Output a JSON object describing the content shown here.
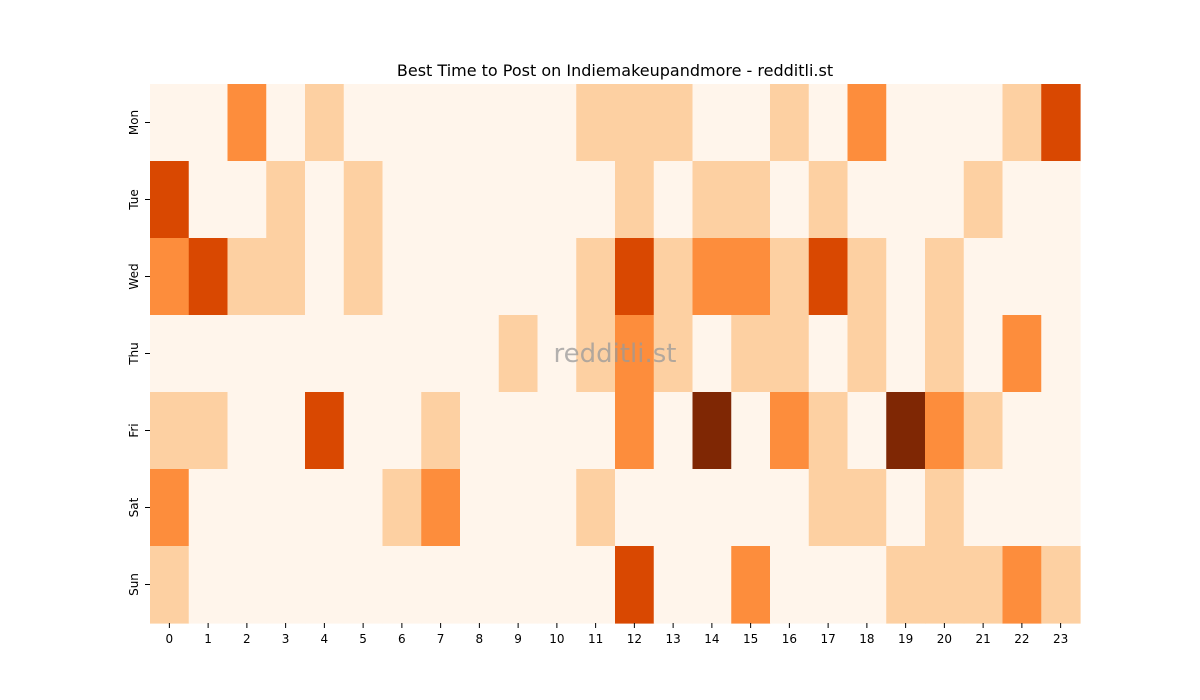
{
  "chart_data": {
    "type": "heatmap",
    "title": "Best Time to Post on Indiemakeupandmore - redditli.st",
    "watermark": "redditli.st",
    "xlabel": "",
    "ylabel": "",
    "x": [
      "0",
      "1",
      "2",
      "3",
      "4",
      "5",
      "6",
      "7",
      "8",
      "9",
      "10",
      "11",
      "12",
      "13",
      "14",
      "15",
      "16",
      "17",
      "18",
      "19",
      "20",
      "21",
      "22",
      "23"
    ],
    "y": [
      "Mon",
      "Tue",
      "Wed",
      "Thu",
      "Fri",
      "Sat",
      "Sun"
    ],
    "values": [
      [
        0,
        0,
        2,
        0,
        1,
        0,
        0,
        0,
        0,
        0,
        0,
        1,
        1,
        1,
        0,
        0,
        1,
        0,
        2,
        0,
        0,
        0,
        1,
        3
      ],
      [
        3,
        0,
        0,
        1,
        0,
        1,
        0,
        0,
        0,
        0,
        0,
        0,
        1,
        0,
        1,
        1,
        0,
        1,
        0,
        0,
        0,
        1,
        0,
        0
      ],
      [
        2,
        3,
        1,
        1,
        0,
        1,
        0,
        0,
        0,
        0,
        0,
        1,
        3,
        1,
        2,
        2,
        1,
        3,
        1,
        0,
        1,
        0,
        0,
        0
      ],
      [
        0,
        0,
        0,
        0,
        0,
        0,
        0,
        0,
        0,
        1,
        0,
        1,
        2,
        1,
        0,
        1,
        1,
        0,
        1,
        0,
        1,
        0,
        2,
        0
      ],
      [
        1,
        1,
        0,
        0,
        3,
        0,
        0,
        1,
        0,
        0,
        0,
        0,
        2,
        0,
        4,
        0,
        2,
        1,
        0,
        4,
        2,
        1,
        0,
        0
      ],
      [
        2,
        0,
        0,
        0,
        0,
        0,
        1,
        2,
        0,
        0,
        0,
        1,
        0,
        0,
        0,
        0,
        0,
        1,
        1,
        0,
        1,
        0,
        0,
        0
      ],
      [
        1,
        0,
        0,
        0,
        0,
        0,
        0,
        0,
        0,
        0,
        0,
        0,
        3,
        0,
        0,
        2,
        0,
        0,
        0,
        1,
        1,
        1,
        2,
        1
      ]
    ],
    "colormap": "Oranges",
    "colors": [
      "#fff5eb",
      "#fdd0a2",
      "#fd8d3c",
      "#d94801",
      "#7f2704"
    ],
    "colorbar": false,
    "grid": false
  }
}
